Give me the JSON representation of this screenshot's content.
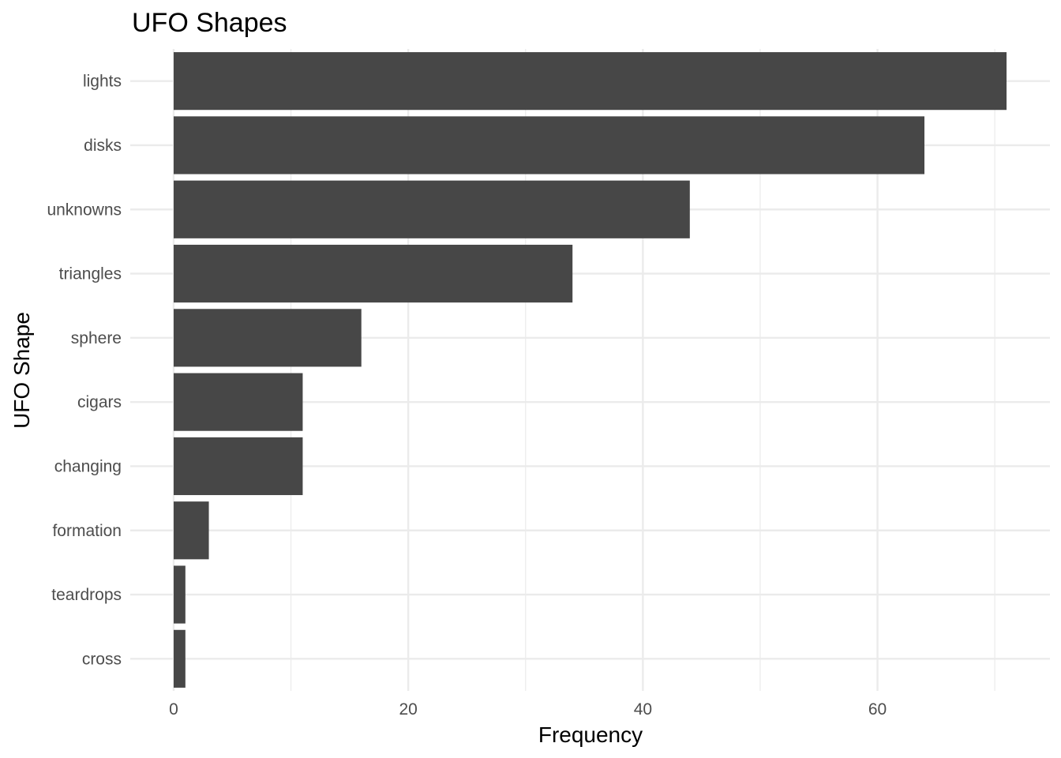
{
  "chart_data": {
    "type": "bar",
    "orientation": "horizontal",
    "title": "UFO Shapes",
    "xlabel": "Frequency",
    "ylabel": "UFO Shape",
    "categories": [
      "lights",
      "disks",
      "unknowns",
      "triangles",
      "sphere",
      "cigars",
      "changing",
      "formation",
      "teardrops",
      "cross"
    ],
    "values": [
      71,
      64,
      44,
      34,
      16,
      11,
      11,
      3,
      1,
      1
    ],
    "xlim": [
      -3.7,
      74.7
    ],
    "xticks": [
      0,
      20,
      40,
      60
    ],
    "grid": true,
    "bar_color": "#474747",
    "grid_color": "#ebebeb"
  }
}
